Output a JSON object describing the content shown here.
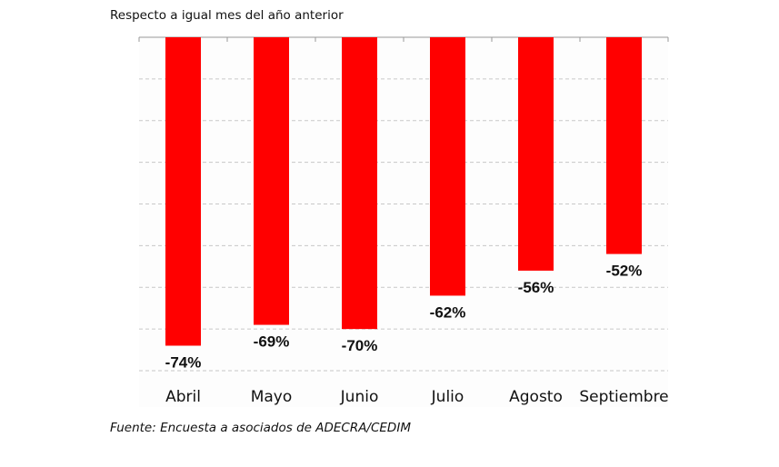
{
  "chart_data": {
    "type": "bar",
    "subtitle": "Respecto a igual mes del año anterior",
    "categories": [
      "Abril",
      "Mayo",
      "Junio",
      "Julio",
      "Agosto",
      "Septiembre"
    ],
    "values": [
      -74,
      -69,
      -70,
      -62,
      -56,
      -52
    ],
    "data_labels": [
      "-74%",
      "-69%",
      "-70%",
      "-62%",
      "-56%",
      "-52%"
    ],
    "ylim": [
      -80,
      0
    ],
    "grid": true,
    "bar_color": "#ff0000",
    "source": "Fuente: Encuesta a asociados de ADECRA/CEDIM"
  }
}
